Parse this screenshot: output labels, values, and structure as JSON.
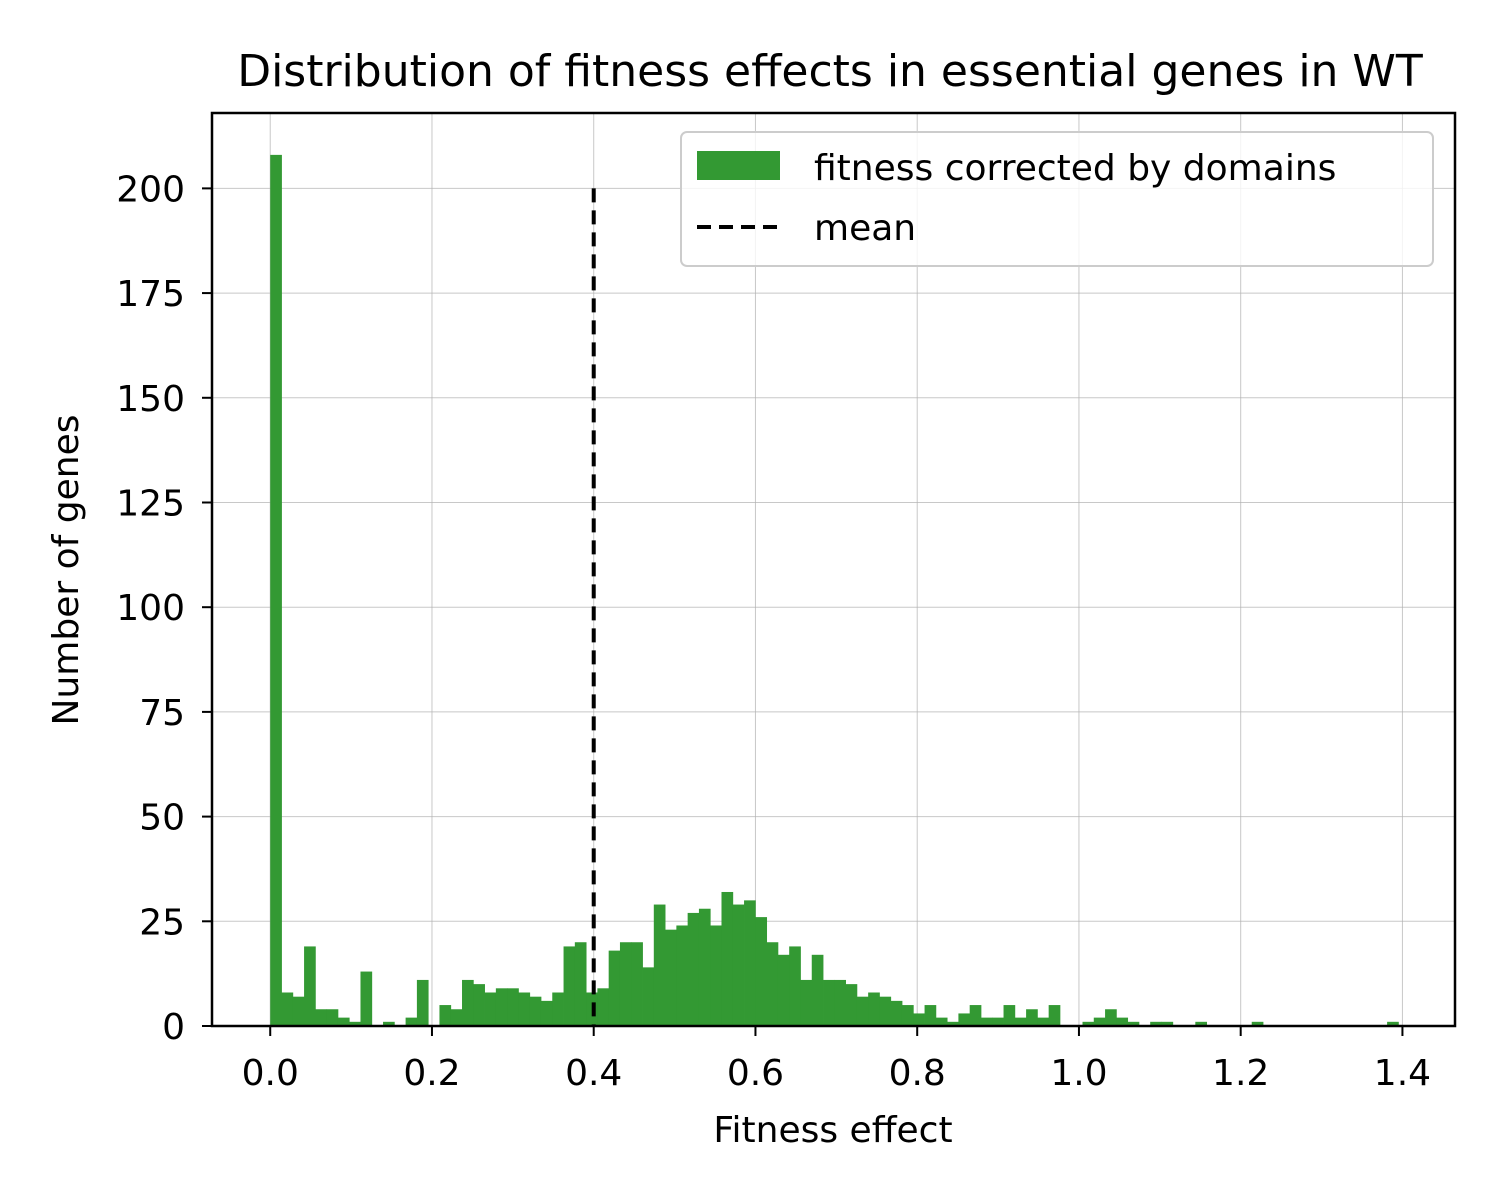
{
  "chart_data": {
    "type": "bar",
    "title": "Distribution of fitness effects in essential genes in WT",
    "xlabel": "Fitness effect",
    "ylabel": "Number of genes",
    "xlim": [
      -0.072,
      1.465
    ],
    "ylim": [
      0,
      218
    ],
    "xticks": [
      0.0,
      0.2,
      0.4,
      0.6,
      0.8,
      1.0,
      1.2,
      1.4
    ],
    "xtick_labels": [
      "0.0",
      "0.2",
      "0.4",
      "0.6",
      "0.8",
      "1.0",
      "1.2",
      "1.4"
    ],
    "yticks": [
      0,
      25,
      50,
      75,
      100,
      125,
      150,
      175,
      200
    ],
    "ytick_labels": [
      "0",
      "25",
      "50",
      "75",
      "100",
      "125",
      "150",
      "175",
      "200"
    ],
    "grid": true,
    "legend_position": "top-right",
    "bin_start": 0.0,
    "bin_width": 0.01395,
    "series": [
      {
        "name": "fitness corrected by domains",
        "color": "#339933",
        "values": [
          208,
          8,
          7,
          19,
          4,
          4,
          2,
          1,
          13,
          0,
          1,
          0,
          2,
          11,
          0,
          5,
          4,
          11,
          10,
          8,
          9,
          9,
          8,
          7,
          6,
          8,
          19,
          20,
          8,
          9,
          18,
          20,
          20,
          14,
          29,
          23,
          24,
          27,
          28,
          24,
          32,
          29,
          30,
          26,
          20,
          17,
          19,
          11,
          17,
          11,
          11,
          10,
          7,
          8,
          7,
          6,
          5,
          3,
          5,
          2,
          1,
          3,
          5,
          2,
          2,
          5,
          2,
          4,
          2,
          5,
          0,
          0,
          1,
          2,
          4,
          2,
          1,
          0,
          1,
          1,
          0,
          0,
          1,
          0,
          0,
          0,
          0,
          1,
          0,
          0,
          0,
          0,
          0,
          0,
          0,
          0,
          0,
          0,
          0,
          1
        ]
      }
    ],
    "mean_line": {
      "name": "mean",
      "x": 0.4,
      "y_top": 200,
      "color": "#000000"
    }
  }
}
